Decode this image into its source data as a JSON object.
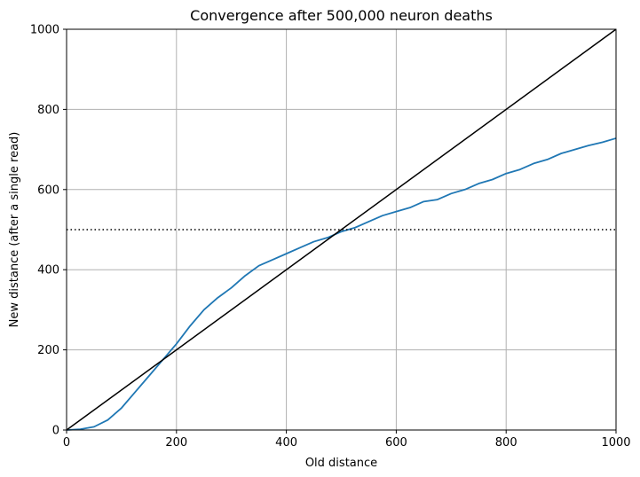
{
  "chart_data": {
    "type": "line",
    "title": "Convergence after 500,000 neuron deaths",
    "xlabel": "Old distance",
    "ylabel": "New distance (after a single read)",
    "xlim": [
      0,
      1000
    ],
    "ylim": [
      0,
      1000
    ],
    "xticks": [
      "0",
      "200",
      "400",
      "600",
      "800",
      "1000"
    ],
    "yticks": [
      "0",
      "200",
      "400",
      "600",
      "800",
      "1000"
    ],
    "grid": true,
    "legend": "none",
    "series": [
      {
        "color": "#1f77b4",
        "style": "solid",
        "x": [
          0,
          25,
          50,
          75,
          100,
          125,
          150,
          175,
          200,
          225,
          250,
          275,
          300,
          325,
          350,
          375,
          400,
          425,
          450,
          475,
          500,
          525,
          550,
          575,
          600,
          625,
          650,
          675,
          700,
          725,
          750,
          775,
          800,
          825,
          850,
          875,
          900,
          925,
          950,
          975,
          1000
        ],
        "y": [
          0,
          2,
          8,
          25,
          55,
          95,
          135,
          175,
          215,
          260,
          300,
          330,
          355,
          385,
          410,
          425,
          440,
          455,
          470,
          480,
          495,
          505,
          520,
          535,
          545,
          555,
          570,
          575,
          590,
          600,
          615,
          625,
          640,
          650,
          665,
          675,
          690,
          700,
          710,
          718,
          728
        ]
      },
      {
        "color": "#000000",
        "style": "solid",
        "x": [
          0,
          1000
        ],
        "y": [
          0,
          1000
        ]
      },
      {
        "color": "#000000",
        "style": "dotted",
        "x": [
          0,
          1000
        ],
        "y": [
          500,
          500
        ]
      }
    ]
  }
}
